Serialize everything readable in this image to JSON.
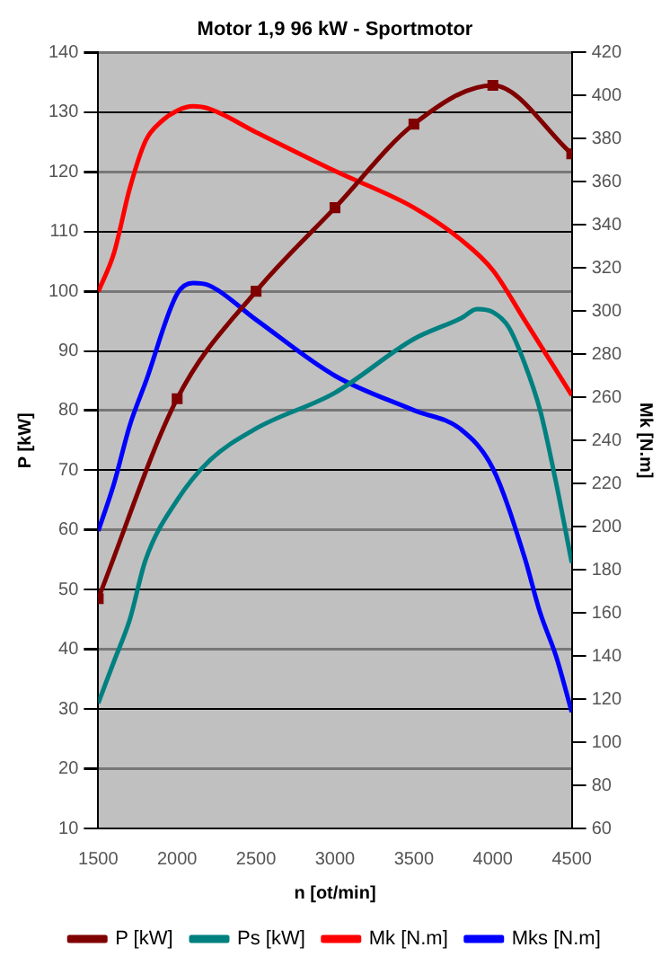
{
  "chart_data": {
    "type": "line",
    "title": "Motor 1,9 96 kW - Sportmotor",
    "xlabel": "n [ot/min]",
    "ylabel": "P [kW]",
    "y2label": "Mk [N.m]",
    "xlim": [
      1500,
      4500
    ],
    "xticks": [
      1500,
      2000,
      2500,
      3000,
      3500,
      4000,
      4500
    ],
    "ylim": [
      10,
      140
    ],
    "yticks": [
      10,
      20,
      30,
      40,
      50,
      60,
      70,
      80,
      90,
      100,
      110,
      120,
      130,
      140
    ],
    "y2lim": [
      60,
      420
    ],
    "y2ticks": [
      60,
      80,
      100,
      120,
      140,
      160,
      180,
      200,
      220,
      240,
      260,
      280,
      300,
      320,
      340,
      360,
      380,
      400,
      420
    ],
    "grid": "y",
    "legend": "bottom",
    "line_style": "solid",
    "series": [
      {
        "name": "P [kW]",
        "color": "#800000",
        "marker": "square",
        "x": [
          1500,
          2000,
          2500,
          3000,
          3500,
          4000,
          4500
        ],
        "values": [
          48.5,
          82,
          100,
          114,
          128,
          134.5,
          123
        ]
      },
      {
        "name": "Ps [kW]",
        "color": "#008080",
        "marker": "none",
        "x": [
          1500,
          1600,
          1700,
          1800,
          2000,
          2200,
          2500,
          3000,
          3500,
          3800,
          3900,
          4000,
          4100,
          4200,
          4300,
          4400,
          4500
        ],
        "values": [
          31,
          38,
          45,
          55,
          65,
          71.5,
          77,
          83,
          92,
          95.5,
          97,
          96.5,
          94,
          88,
          80,
          68,
          54.5
        ]
      },
      {
        "name": "Mk [N.m]",
        "color": "#ff0000",
        "marker": "none",
        "axis": "y2",
        "x": [
          1500,
          1600,
          1700,
          1800,
          1900,
          2000,
          2100,
          2200,
          2500,
          3000,
          3500,
          3800,
          4000,
          4200,
          4500
        ],
        "values": [
          309,
          327,
          357,
          379,
          388,
          393,
          395,
          394,
          383,
          365,
          348,
          333,
          319,
          296,
          261
        ]
      },
      {
        "name": "Mks [N.m]",
        "color": "#0000ff",
        "marker": "none",
        "axis": "y2",
        "x": [
          1500,
          1600,
          1700,
          1800,
          2000,
          2100,
          2200,
          2500,
          3000,
          3500,
          3800,
          4000,
          4200,
          4300,
          4400,
          4500
        ],
        "values": [
          198,
          220,
          247,
          267,
          308,
          313,
          312,
          296,
          270,
          254,
          245,
          227,
          186,
          160,
          140,
          114
        ]
      }
    ]
  }
}
